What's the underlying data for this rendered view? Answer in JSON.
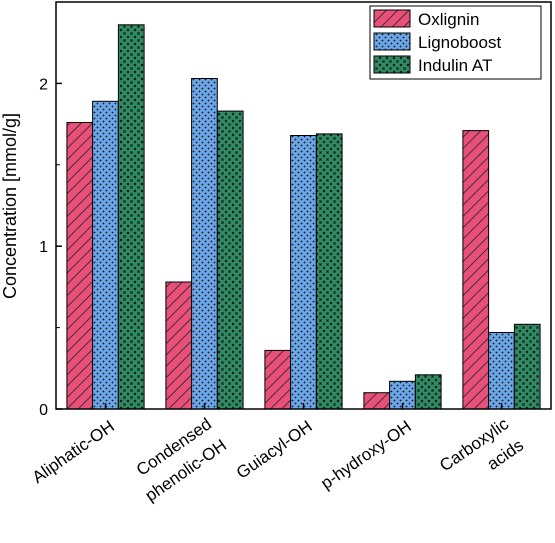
{
  "chart_data": {
    "type": "bar",
    "ylabel": "Concentration [mmol/g]",
    "xlabel": "",
    "ylim": [
      0,
      2.5
    ],
    "yticks": [
      0,
      1,
      2
    ],
    "categories": [
      [
        "Aliphatic-OH"
      ],
      [
        "Condensed",
        "phenolic-OH"
      ],
      [
        "Guiacyl-OH"
      ],
      [
        "p-hydroxy-OH"
      ],
      [
        "Carboxylic",
        "acids"
      ]
    ],
    "legend_position": "top-right",
    "series": [
      {
        "name": "Oxlignin",
        "color": "#e8507a",
        "pattern": "diagonal-hatch",
        "values": [
          1.76,
          0.78,
          0.36,
          0.1,
          1.71
        ]
      },
      {
        "name": "Lignoboost",
        "color": "#6aa6e8",
        "pattern": "dots",
        "values": [
          1.89,
          2.03,
          1.68,
          0.17,
          0.47
        ]
      },
      {
        "name": "Indulin AT",
        "color": "#2e8b64",
        "pattern": "crosses",
        "values": [
          2.36,
          1.83,
          1.69,
          0.21,
          0.52
        ]
      }
    ]
  }
}
